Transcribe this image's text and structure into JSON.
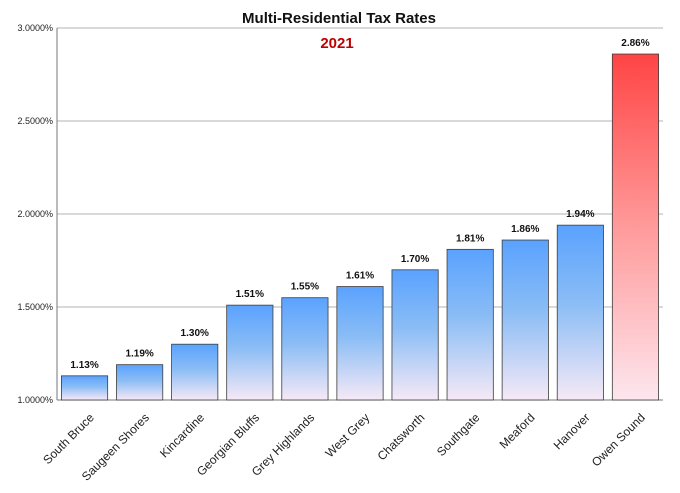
{
  "chart_data": {
    "type": "bar",
    "title": "Multi-Residential Tax Rates",
    "subtitle": "2021",
    "categories": [
      "South Bruce",
      "Saugeen Shores",
      "Kincardine",
      "Georgian Bluffs",
      "Grey Highlands",
      "West Grey",
      "Chatsworth",
      "Southgate",
      "Meaford",
      "Hanover",
      "Owen Sound"
    ],
    "values": [
      1.13,
      1.19,
      1.3,
      1.51,
      1.55,
      1.61,
      1.7,
      1.81,
      1.86,
      1.94,
      2.86
    ],
    "data_labels": [
      "1.13%",
      "1.19%",
      "1.30%",
      "1.51%",
      "1.55%",
      "1.61%",
      "1.70%",
      "1.81%",
      "1.86%",
      "1.94%",
      "2.86%"
    ],
    "ylim": [
      1.0,
      3.0
    ],
    "yticks": [
      1.0,
      1.5,
      2.0,
      2.5,
      3.0
    ],
    "ytick_labels": [
      "1.0000%",
      "1.5000%",
      "2.0000%",
      "2.5000%",
      "3.0000%"
    ],
    "xlabel": "",
    "ylabel": "",
    "grid": true,
    "legend": "none",
    "colors": {
      "default_top": "#5aa2ff",
      "default_bottom": "#f6e9f6",
      "highlight_top": "#ff4444",
      "highlight_bottom": "#fde6ee",
      "subtitle": "#c00000"
    },
    "highlight_category": "Owen Sound"
  }
}
